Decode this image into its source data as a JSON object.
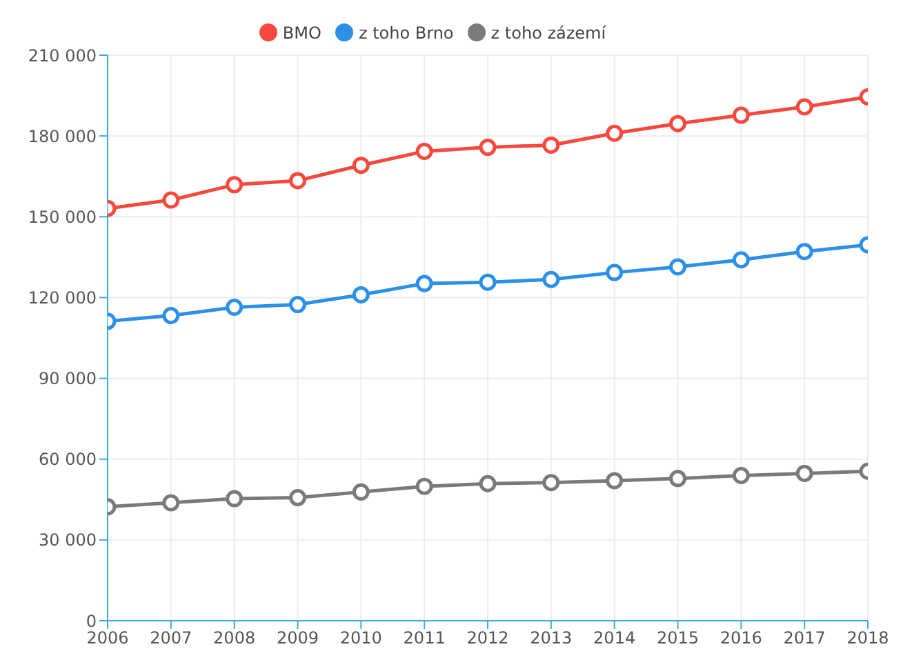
{
  "chart_data": {
    "type": "line",
    "categories": [
      "2006",
      "2007",
      "2008",
      "2009",
      "2010",
      "2011",
      "2012",
      "2013",
      "2014",
      "2015",
      "2016",
      "2017",
      "2018"
    ],
    "series": [
      {
        "name": "BMO",
        "color": "#f5493e",
        "values": [
          153100,
          156200,
          161900,
          163400,
          169100,
          174300,
          175800,
          176600,
          181000,
          184600,
          187700,
          190800,
          194500
        ]
      },
      {
        "name": "z toho Brno",
        "color": "#2c8fe8",
        "values": [
          111200,
          113300,
          116400,
          117400,
          121000,
          125200,
          125700,
          126700,
          129300,
          131400,
          134000,
          137100,
          139600
        ]
      },
      {
        "name": "z toho zázemí",
        "color": "#7a7a7a",
        "values": [
          42300,
          43800,
          45300,
          45700,
          47800,
          49900,
          50900,
          51300,
          52000,
          52800,
          53900,
          54700,
          55500
        ]
      }
    ],
    "ylim": [
      0,
      210000
    ],
    "yticks": [
      {
        "value": 0,
        "label": "0"
      },
      {
        "value": 30000,
        "label": "30 000"
      },
      {
        "value": 60000,
        "label": "60 000"
      },
      {
        "value": 90000,
        "label": "90 000"
      },
      {
        "value": 120000,
        "label": "120 000"
      },
      {
        "value": 150000,
        "label": "150 000"
      },
      {
        "value": 180000,
        "label": "180 000"
      },
      {
        "value": 210000,
        "label": "210 000"
      }
    ],
    "grid": true,
    "legend": "top",
    "marker": "circle",
    "line_style": "solid"
  }
}
